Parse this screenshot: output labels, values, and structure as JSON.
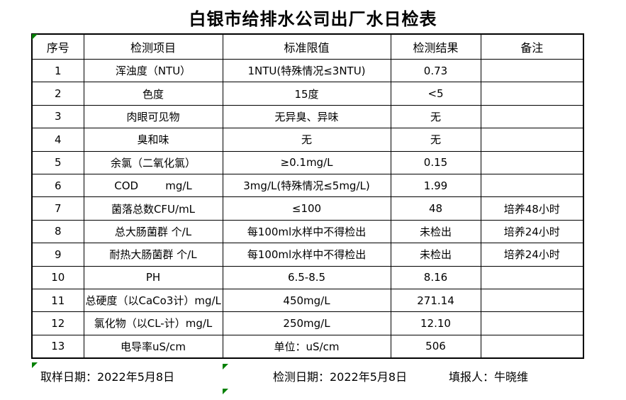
{
  "title": "白银市给排水公司出厂水日检表",
  "table": {
    "headers": [
      "序号",
      "检测项目",
      "标准限值",
      "检测结果",
      "备注"
    ],
    "rows": [
      {
        "no": "1",
        "item": "浑浊度（NTU）",
        "limit": "1NTU(特殊情况≤3NTU)",
        "result": "0.73",
        "remark": ""
      },
      {
        "no": "2",
        "item": "色度",
        "limit": "15度",
        "result": "<5",
        "remark": ""
      },
      {
        "no": "3",
        "item": "肉眼可见物",
        "limit": "无异臭、异味",
        "result": "无",
        "remark": ""
      },
      {
        "no": "4",
        "item": "臭和味",
        "limit": "无",
        "result": "无",
        "remark": ""
      },
      {
        "no": "5",
        "item": "余氯（二氧化氯）",
        "limit": "≥0.1mg/L",
        "result": "0.15",
        "remark": ""
      },
      {
        "no": "6",
        "item": "COD        mg/L",
        "limit": "3mg/L(特殊情况≤5mg/L)",
        "result": "1.99",
        "remark": ""
      },
      {
        "no": "7",
        "item": "菌落总数CFU/mL",
        "limit": "≤100",
        "result": "48",
        "remark": "培养48小时"
      },
      {
        "no": "8",
        "item": "总大肠菌群 个/L",
        "limit": "每100ml水样中不得检出",
        "result": "未检出",
        "remark": "培养24小时"
      },
      {
        "no": "9",
        "item": "耐热大肠菌群 个/L",
        "limit": "每100ml水样中不得检出",
        "result": "未检出",
        "remark": "培养24小时"
      },
      {
        "no": "10",
        "item": "PH",
        "limit": "6.5-8.5",
        "result": "8.16",
        "remark": ""
      },
      {
        "no": "11",
        "item": "总硬度（以CaCo3计）mg/L",
        "limit": "450mg/L",
        "result": "271.14",
        "remark": ""
      },
      {
        "no": "12",
        "item": "氯化物（以CL-计）mg/L",
        "limit": "250mg/L",
        "result": "12.10",
        "remark": ""
      },
      {
        "no": "13",
        "item": "电导率uS/cm",
        "limit": "单位：uS/cm",
        "result": "506",
        "remark": ""
      }
    ]
  },
  "footer": {
    "sampling_date": "取样日期：2022年5月8日",
    "testing_date": "检测日期：2022年5月8日",
    "reporter": "填报人：牛晓维"
  },
  "colors": {
    "border": "#000000",
    "text": "#000000",
    "indicator_green": "#008000",
    "background": "#ffffff"
  }
}
